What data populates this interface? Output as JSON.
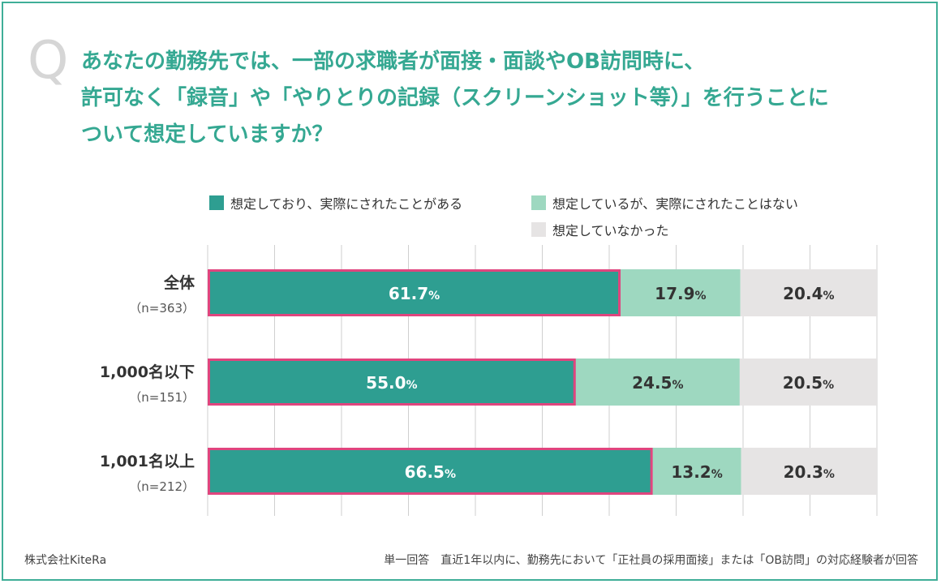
{
  "question": {
    "mark": "Q",
    "lines": [
      "あなたの勤務先では、一部の求職者が面接・面談やOB訪問時に、",
      "許可なく「録音」や「やりとりの記録（スクリーンショット等）」を行うことに",
      "ついて想定していますか？"
    ]
  },
  "colors": {
    "accent": "#35a892",
    "dark_teal": "#2e9e91",
    "light_teal": "#9ed8c0",
    "gray": "#e6e4e4",
    "highlight_border": "#e0457e",
    "grid": "#cfcfcf"
  },
  "chart_data": {
    "type": "bar",
    "orientation": "horizontal",
    "stacked": true,
    "categories": [
      {
        "name": "全体",
        "n": "（n=363）"
      },
      {
        "name": "1,000名以下",
        "n": "（n=151）"
      },
      {
        "name": "1,001名以上",
        "n": "（n=212）"
      }
    ],
    "series": [
      {
        "name": "想定しており、実際にされたことがある",
        "color": "#2e9e91",
        "values": [
          61.7,
          55.0,
          66.5
        ],
        "labels": [
          "61.7",
          "55.0",
          "66.5"
        ]
      },
      {
        "name": "想定しているが、実際にされたことはない",
        "color": "#9ed8c0",
        "values": [
          17.9,
          24.5,
          13.2
        ],
        "labels": [
          "17.9",
          "24.5",
          "13.2"
        ]
      },
      {
        "name": "想定していなかった",
        "color": "#e6e4e4",
        "values": [
          20.4,
          20.5,
          20.3
        ],
        "labels": [
          "20.4",
          "20.5",
          "20.3"
        ]
      }
    ],
    "value_suffix": "%",
    "xlim": [
      0,
      100
    ],
    "highlighted_series": 0,
    "legend_position": "top"
  },
  "footer": {
    "company": "株式会社KiteRa",
    "note": "単一回答　直近1年以内に、勤務先において「正社員の採用面接」または「OB訪問」の対応経験者が回答"
  }
}
